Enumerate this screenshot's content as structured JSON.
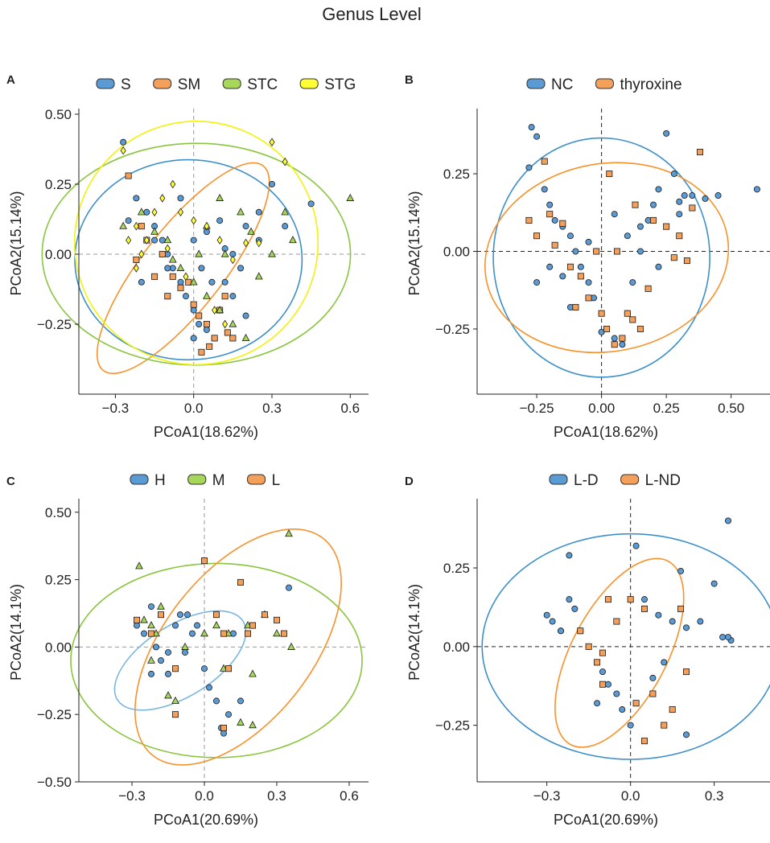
{
  "figure": {
    "title": "Genus Level"
  },
  "colors": {
    "S": "#5b9bd5",
    "SM": "#f4a05a",
    "STC": "#a6d75b",
    "STG": "#ffff33",
    "blue_ellipse": "#3d8fca",
    "orange_ellipse": "#f7922b",
    "green_ellipse": "#8bc53f",
    "yellow_ellipse": "#f2f20a"
  },
  "chart_data": [
    {
      "panel": "A",
      "type": "scatter",
      "xlabel": "PCoA1(18.62%)",
      "ylabel": "PCoA2(15.14%)",
      "xlim": [
        -0.44,
        0.67
      ],
      "ylim": [
        -0.5,
        0.52
      ],
      "xticks": [
        -0.3,
        0.0,
        0.3,
        0.6
      ],
      "xtick_labels": [
        "−0.3",
        "0.0",
        "0.3",
        "0.6"
      ],
      "yticks": [
        -0.25,
        0.0,
        0.25,
        0.5
      ],
      "ytick_labels": [
        "−0.25",
        "0.00",
        "0.25",
        "0.50"
      ],
      "legend": [
        {
          "label": "S",
          "fill": "#5b9bd5"
        },
        {
          "label": "SM",
          "fill": "#f4a05a"
        },
        {
          "label": "STC",
          "fill": "#a6d75b"
        },
        {
          "label": "STG",
          "fill": "#ffff33"
        }
      ],
      "ellipses": [
        {
          "name": "S",
          "color": "#3d8fca",
          "cx": -0.02,
          "cy": -0.02,
          "rx": 0.42,
          "ry": 0.37,
          "angle": 0
        },
        {
          "name": "SM",
          "color": "#f7922b",
          "cx": -0.04,
          "cy": -0.05,
          "rx": 0.48,
          "ry": 0.15,
          "angle": -52
        },
        {
          "name": "STC",
          "color": "#8bc53f",
          "cx": 0.01,
          "cy": 0.0,
          "rx": 0.57,
          "ry": 0.41,
          "angle": 0
        },
        {
          "name": "STG",
          "color": "#f2f20a",
          "cx": 0.01,
          "cy": 0.04,
          "rx": 0.45,
          "ry": 0.45,
          "angle": 0
        }
      ],
      "series": [
        {
          "name": "S",
          "marker": "circle",
          "fill": "#5b9bd5",
          "x": [
            -0.27,
            -0.22,
            -0.18,
            -0.15,
            -0.12,
            -0.1,
            -0.08,
            -0.05,
            -0.03,
            0.0,
            0.02,
            0.05,
            0.08,
            0.1,
            0.12,
            0.15,
            0.2,
            0.25,
            0.3,
            0.35,
            0.45,
            -0.2,
            -0.1,
            0.0,
            0.05,
            0.1,
            0.15,
            0.2,
            -0.25,
            -0.15,
            0.03,
            0.07,
            0.12,
            0.18,
            -0.05,
            0.25,
            0.0
          ],
          "y": [
            0.4,
            0.2,
            0.15,
            0.1,
            0.05,
            0.0,
            -0.05,
            -0.1,
            -0.15,
            -0.2,
            -0.25,
            -0.27,
            -0.3,
            -0.2,
            -0.1,
            0.0,
            0.1,
            0.15,
            0.25,
            0.1,
            0.18,
            -0.1,
            -0.05,
            0.05,
            0.08,
            0.12,
            -0.15,
            -0.22,
            0.12,
            0.05,
            -0.05,
            -0.1,
            0.02,
            -0.05,
            0.2,
            0.05,
            -0.3
          ]
        },
        {
          "name": "SM",
          "marker": "square",
          "fill": "#f4a05a",
          "x": [
            -0.25,
            -0.2,
            -0.18,
            -0.12,
            -0.08,
            -0.05,
            0.0,
            0.02,
            0.05,
            0.08,
            0.1,
            0.12,
            0.15,
            -0.22,
            -0.1,
            0.03,
            0.06,
            0.13,
            -0.15,
            -0.02
          ],
          "y": [
            0.28,
            0.1,
            0.05,
            0.0,
            -0.08,
            -0.12,
            -0.18,
            -0.22,
            -0.25,
            -0.3,
            -0.2,
            -0.15,
            -0.3,
            -0.02,
            -0.15,
            -0.35,
            -0.33,
            -0.28,
            -0.08,
            -0.1
          ]
        },
        {
          "name": "STC",
          "marker": "triangle",
          "fill": "#a6d75b",
          "x": [
            -0.27,
            -0.2,
            -0.15,
            -0.1,
            -0.05,
            0.0,
            0.05,
            0.1,
            0.15,
            0.2,
            0.25,
            0.3,
            0.35,
            0.38,
            0.6,
            0.1,
            0.05,
            -0.08,
            0.12,
            0.02,
            0.18,
            0.22
          ],
          "y": [
            0.1,
            0.15,
            0.08,
            0.05,
            -0.05,
            -0.1,
            -0.15,
            -0.2,
            -0.25,
            -0.3,
            -0.08,
            0.0,
            0.15,
            0.05,
            0.2,
            0.2,
            0.1,
            -0.02,
            0.0,
            0.0,
            0.15,
            0.08
          ]
        },
        {
          "name": "STG",
          "marker": "diamond",
          "fill": "#ffff33",
          "x": [
            -0.27,
            -0.25,
            -0.22,
            -0.2,
            -0.15,
            -0.12,
            -0.08,
            -0.05,
            0.0,
            0.05,
            0.1,
            0.15,
            0.2,
            0.25,
            0.3,
            0.35,
            -0.18,
            -0.1,
            -0.03,
            0.08,
            0.12,
            -0.22
          ],
          "y": [
            0.37,
            0.05,
            0.1,
            0.0,
            0.15,
            0.2,
            0.25,
            0.15,
            0.12,
            0.1,
            0.05,
            -0.02,
            0.04,
            0.04,
            0.4,
            0.33,
            0.05,
            0.02,
            -0.08,
            -0.2,
            -0.25,
            -0.05
          ]
        }
      ]
    },
    {
      "panel": "B",
      "type": "scatter",
      "xlabel": "PCoA1(18.62%)",
      "ylabel": "PCoA2(15.14%)",
      "xlim": [
        -0.48,
        0.65
      ],
      "ylim": [
        -0.46,
        0.46
      ],
      "xticks": [
        -0.25,
        0.0,
        0.25,
        0.5
      ],
      "xtick_labels": [
        "−0.25",
        "0.00",
        "0.25",
        "0.50"
      ],
      "yticks": [
        -0.25,
        0.0,
        0.25
      ],
      "ytick_labels": [
        "−0.25",
        "0.00",
        "0.25"
      ],
      "legend": [
        {
          "label": "NC",
          "fill": "#5b9bd5"
        },
        {
          "label": "thyroxine",
          "fill": "#f4a05a"
        }
      ],
      "ellipses": [
        {
          "name": "NC",
          "color": "#3d8fca",
          "cx": 0.0,
          "cy": -0.02,
          "rx": 0.38,
          "ry": 0.42,
          "angle": 0
        },
        {
          "name": "thyroxine",
          "color": "#f7922b",
          "cx": 0.02,
          "cy": -0.02,
          "rx": 0.43,
          "ry": 0.33,
          "angle": -10
        }
      ],
      "series": [
        {
          "name": "NC",
          "marker": "circle",
          "fill": "#5b9bd5",
          "x": [
            -0.27,
            -0.25,
            -0.22,
            -0.2,
            -0.18,
            -0.15,
            -0.12,
            -0.1,
            -0.08,
            -0.05,
            -0.03,
            0.0,
            0.02,
            0.05,
            0.08,
            0.1,
            0.12,
            0.15,
            0.18,
            0.2,
            0.22,
            0.25,
            0.28,
            0.3,
            0.32,
            0.35,
            0.4,
            0.45,
            0.6,
            -0.28,
            -0.2,
            -0.12,
            0.0,
            0.1,
            0.22,
            -0.15,
            -0.05,
            0.05,
            0.15,
            -0.25,
            0.3
          ],
          "y": [
            0.4,
            0.37,
            0.2,
            0.15,
            0.1,
            0.08,
            0.05,
            0.0,
            -0.05,
            -0.1,
            -0.15,
            -0.2,
            -0.25,
            -0.28,
            -0.3,
            -0.2,
            -0.1,
            0.0,
            0.1,
            0.15,
            0.2,
            0.38,
            0.25,
            0.16,
            0.18,
            0.18,
            0.17,
            0.18,
            0.2,
            0.27,
            -0.05,
            -0.18,
            -0.26,
            0.05,
            -0.05,
            -0.08,
            0.03,
            0.12,
            0.08,
            -0.1,
            0.12
          ]
        },
        {
          "name": "thyroxine",
          "marker": "square",
          "fill": "#f4a05a",
          "x": [
            -0.28,
            -0.25,
            -0.22,
            -0.2,
            -0.15,
            -0.12,
            -0.08,
            -0.05,
            0.0,
            0.02,
            0.05,
            0.08,
            0.1,
            0.12,
            0.15,
            0.18,
            0.2,
            0.25,
            0.3,
            0.35,
            0.38,
            -0.1,
            -0.18,
            0.03,
            0.13,
            -0.02,
            0.06,
            0.28,
            0.33
          ],
          "y": [
            0.1,
            0.05,
            0.29,
            0.12,
            0.09,
            -0.05,
            -0.08,
            -0.15,
            -0.2,
            -0.25,
            -0.3,
            -0.28,
            -0.2,
            -0.22,
            -0.25,
            -0.12,
            0.1,
            0.08,
            0.05,
            0.14,
            0.32,
            -0.18,
            0.02,
            0.25,
            0.15,
            0.0,
            0.0,
            -0.02,
            -0.03
          ]
        }
      ]
    },
    {
      "panel": "C",
      "type": "scatter",
      "xlabel": "PCoA1(20.69%)",
      "ylabel": "PCoA2(14.1%)",
      "xlim": [
        -0.52,
        0.68
      ],
      "ylim": [
        -0.5,
        0.55
      ],
      "xticks": [
        -0.3,
        0.0,
        0.3,
        0.6
      ],
      "xtick_labels": [
        "−0.3",
        "0.0",
        "0.3",
        "0.6"
      ],
      "yticks": [
        -0.5,
        -0.25,
        0.0,
        0.25,
        0.5
      ],
      "ytick_labels": [
        "−0.50",
        "−0.25",
        "0.00",
        "0.25",
        "0.50"
      ],
      "legend": [
        {
          "label": "H",
          "fill": "#5b9bd5"
        },
        {
          "label": "M",
          "fill": "#a6d75b"
        },
        {
          "label": "L",
          "fill": "#f4a05a"
        }
      ],
      "ellipses": [
        {
          "name": "H",
          "color": "#7bb6e0",
          "cx": -0.1,
          "cy": -0.05,
          "rx": 0.29,
          "ry": 0.14,
          "angle": -32
        },
        {
          "name": "M",
          "color": "#8bc53f",
          "cx": 0.05,
          "cy": -0.05,
          "rx": 0.57,
          "ry": 0.38,
          "angle": 0
        },
        {
          "name": "L",
          "color": "#f7922b",
          "cx": 0.14,
          "cy": 0.0,
          "rx": 0.54,
          "ry": 0.29,
          "angle": -52
        }
      ],
      "series": [
        {
          "name": "H",
          "marker": "circle",
          "fill": "#5b9bd5",
          "x": [
            -0.28,
            -0.25,
            -0.22,
            -0.2,
            -0.18,
            -0.15,
            -0.12,
            -0.1,
            -0.08,
            -0.05,
            -0.03,
            0.0,
            0.02,
            0.05,
            0.08,
            0.1,
            0.12,
            0.35,
            -0.15,
            -0.22,
            0.07,
            -0.07,
            0.15
          ],
          "y": [
            0.08,
            0.05,
            0.15,
            0.0,
            -0.05,
            -0.1,
            0.08,
            0.12,
            -0.02,
            0.05,
            0.08,
            -0.08,
            -0.15,
            -0.2,
            -0.32,
            -0.25,
            0.05,
            0.22,
            -0.02,
            -0.1,
            -0.3,
            0.12,
            -0.2
          ]
        },
        {
          "name": "M",
          "marker": "triangle",
          "fill": "#a6d75b",
          "x": [
            -0.27,
            -0.25,
            -0.22,
            -0.2,
            -0.18,
            -0.15,
            -0.12,
            -0.08,
            0.0,
            0.05,
            0.1,
            0.15,
            0.2,
            0.25,
            0.3,
            0.35,
            0.36,
            0.18,
            0.08,
            -0.22,
            0.2
          ],
          "y": [
            0.3,
            0.1,
            0.08,
            0.05,
            0.15,
            -0.18,
            -0.2,
            0.0,
            0.05,
            0.08,
            0.05,
            -0.28,
            -0.1,
            0.12,
            0.05,
            0.42,
            0.0,
            0.08,
            -0.08,
            -0.05,
            -0.29
          ]
        },
        {
          "name": "L",
          "marker": "square",
          "fill": "#f4a05a",
          "x": [
            -0.28,
            -0.22,
            -0.18,
            -0.12,
            0.0,
            0.05,
            0.08,
            0.1,
            0.15,
            0.2,
            0.25,
            0.3,
            0.33,
            -0.12,
            0.08,
            0.18
          ],
          "y": [
            0.1,
            0.05,
            0.12,
            -0.08,
            0.32,
            0.12,
            -0.3,
            -0.08,
            0.24,
            0.08,
            0.12,
            0.1,
            0.05,
            -0.25,
            0.05,
            0.05
          ]
        }
      ]
    },
    {
      "panel": "D",
      "type": "scatter",
      "xlabel": "PCoA1(20.69%)",
      "ylabel": "PCoA2(14.1%)",
      "xlim": [
        -0.55,
        0.5
      ],
      "ylim": [
        -0.43,
        0.47
      ],
      "xticks": [
        -0.3,
        0.0,
        0.3
      ],
      "xtick_labels": [
        "−0.3",
        "0.0",
        "0.3"
      ],
      "yticks": [
        -0.25,
        0.0,
        0.25
      ],
      "ytick_labels": [
        "−0.25",
        "0.00",
        "0.25"
      ],
      "legend": [
        {
          "label": "L-D",
          "fill": "#5b9bd5"
        },
        {
          "label": "L-ND",
          "fill": "#f4a05a"
        }
      ],
      "ellipses": [
        {
          "name": "L-D",
          "color": "#3d8fca",
          "cx": 0.0,
          "cy": 0.0,
          "rx": 0.5,
          "ry": 0.38,
          "angle": 0
        },
        {
          "name": "L-ND",
          "color": "#f7922b",
          "cx": -0.04,
          "cy": -0.02,
          "rx": 0.35,
          "ry": 0.16,
          "angle": -62
        }
      ],
      "series": [
        {
          "name": "L-D",
          "marker": "circle",
          "fill": "#5b9bd5",
          "x": [
            -0.3,
            -0.28,
            -0.25,
            -0.22,
            -0.2,
            -0.18,
            -0.15,
            -0.12,
            -0.1,
            -0.08,
            -0.05,
            -0.03,
            0.0,
            0.02,
            0.05,
            0.1,
            0.15,
            0.18,
            0.2,
            0.25,
            0.3,
            0.33,
            0.35,
            0.36,
            0.35,
            -0.22,
            -0.12,
            -0.25,
            0.08,
            0.12,
            0.2
          ],
          "y": [
            0.1,
            0.08,
            0.05,
            0.15,
            0.12,
            0.05,
            0.0,
            -0.05,
            -0.08,
            -0.12,
            -0.15,
            -0.2,
            -0.25,
            0.32,
            0.15,
            0.1,
            0.08,
            0.24,
            0.06,
            0.08,
            0.2,
            0.03,
            0.4,
            0.02,
            0.03,
            0.29,
            -0.18,
            0.05,
            -0.1,
            -0.05,
            -0.28
          ]
        },
        {
          "name": "L-ND",
          "marker": "square",
          "fill": "#f4a05a",
          "x": [
            -0.18,
            -0.15,
            -0.12,
            -0.1,
            -0.08,
            -0.05,
            0.0,
            0.02,
            0.05,
            0.08,
            0.12,
            0.15,
            0.2,
            -0.1,
            0.05,
            0.18
          ],
          "y": [
            0.05,
            0.0,
            -0.05,
            -0.12,
            0.15,
            0.08,
            0.15,
            -0.18,
            -0.3,
            -0.15,
            -0.25,
            -0.2,
            -0.08,
            -0.02,
            0.12,
            0.12
          ]
        }
      ]
    }
  ]
}
